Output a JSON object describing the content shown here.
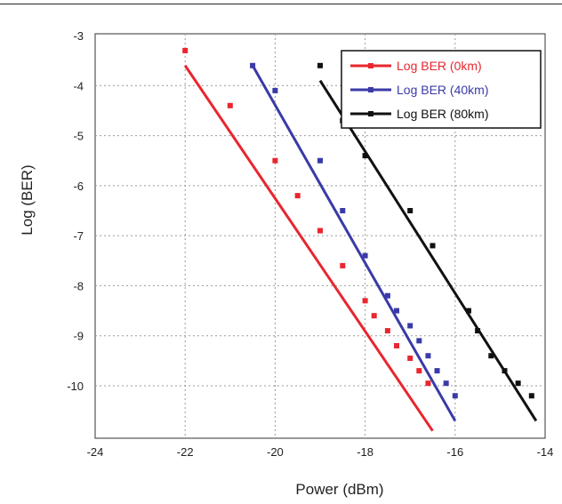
{
  "chart_data": {
    "type": "line",
    "xlabel": "Power  (dBm)",
    "ylabel": "Log (BER)",
    "xlim": [
      -24,
      -14
    ],
    "x_ticks": [
      -24,
      -22,
      -20,
      -18,
      -16,
      -14
    ],
    "x_tick_labels": [
      "-24",
      "-22",
      "-20",
      "-18",
      "-16",
      "-14"
    ],
    "y_ticks": [
      -3,
      -4,
      -5,
      -6,
      -7,
      -8,
      -9,
      -10
    ],
    "y_tick_labels": [
      "-3",
      "-4",
      "-5",
      "-6",
      "-7",
      "-8",
      "-9",
      "-10"
    ],
    "grid": true,
    "legend_position": "top-right",
    "series": [
      {
        "name": "Log BER (0km)",
        "color": "#e8262e",
        "points": [
          [
            -22,
            -3.3
          ],
          [
            -21,
            -4.4
          ],
          [
            -20,
            -5.5
          ],
          [
            -19.5,
            -6.2
          ],
          [
            -19,
            -6.9
          ],
          [
            -18.5,
            -7.6
          ],
          [
            -18,
            -8.3
          ],
          [
            -17.8,
            -8.6
          ],
          [
            -17.5,
            -8.9
          ],
          [
            -17.3,
            -9.2
          ],
          [
            -17,
            -9.45
          ],
          [
            -16.8,
            -9.7
          ],
          [
            -16.6,
            -9.95
          ]
        ],
        "fit": [
          [
            -22,
            -3.6
          ],
          [
            -16.5,
            -10.9
          ]
        ]
      },
      {
        "name": "Log BER (40km)",
        "color": "#3a3aa8",
        "points": [
          [
            -20.5,
            -3.6
          ],
          [
            -20,
            -4.1
          ],
          [
            -19,
            -5.5
          ],
          [
            -18.5,
            -6.5
          ],
          [
            -18,
            -7.4
          ],
          [
            -17.5,
            -8.2
          ],
          [
            -17.3,
            -8.5
          ],
          [
            -17,
            -8.8
          ],
          [
            -16.8,
            -9.1
          ],
          [
            -16.6,
            -9.4
          ],
          [
            -16.4,
            -9.7
          ],
          [
            -16.2,
            -9.95
          ],
          [
            -16,
            -10.2
          ]
        ],
        "fit": [
          [
            -20.5,
            -3.6
          ],
          [
            -16,
            -10.7
          ]
        ]
      },
      {
        "name": "Log BER (80km)",
        "color": "#111111",
        "points": [
          [
            -19,
            -3.6
          ],
          [
            -18.5,
            -4.7
          ],
          [
            -18,
            -5.4
          ],
          [
            -17,
            -6.5
          ],
          [
            -16.5,
            -7.2
          ],
          [
            -15.7,
            -8.5
          ],
          [
            -15.5,
            -8.9
          ],
          [
            -15.2,
            -9.4
          ],
          [
            -14.9,
            -9.7
          ],
          [
            -14.6,
            -9.95
          ],
          [
            -14.3,
            -10.2
          ]
        ],
        "fit": [
          [
            -19,
            -3.9
          ],
          [
            -14.2,
            -10.7
          ]
        ]
      }
    ]
  }
}
